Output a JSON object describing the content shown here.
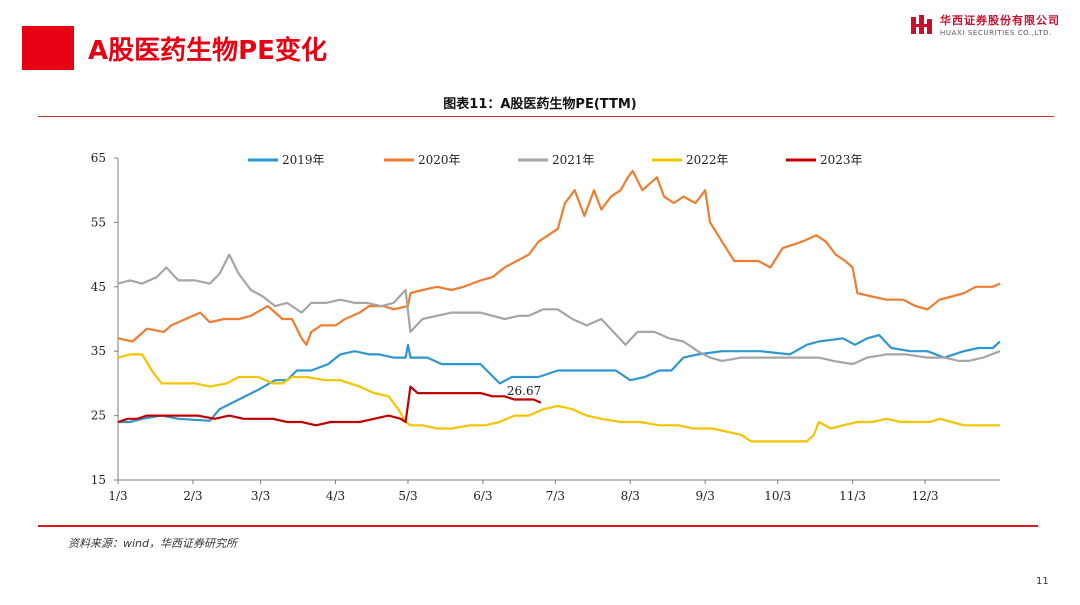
{
  "header": {
    "title": "A股医药生物PE变化",
    "logo_cn": "华西证券股份有限公司",
    "logo_en": "HUAXI SECURITIES CO.,LTD."
  },
  "colors": {
    "brand_red": "#e60012"
  },
  "source": "资料来源：wind，华西证券研究所",
  "page_number": "11",
  "chart_data": {
    "type": "line",
    "title": "图表11：A股医药生物PE(TTM)",
    "xlabel": "",
    "ylabel": "",
    "ylim": [
      15,
      65
    ],
    "yticks": [
      15,
      25,
      35,
      45,
      55,
      65
    ],
    "x_range": [
      0,
      365
    ],
    "xticks": [
      {
        "label": "1/3",
        "x": 0
      },
      {
        "label": "2/3",
        "x": 31
      },
      {
        "label": "3/3",
        "x": 59
      },
      {
        "label": "4/3",
        "x": 90
      },
      {
        "label": "5/3",
        "x": 120
      },
      {
        "label": "6/3",
        "x": 151
      },
      {
        "label": "7/3",
        "x": 181
      },
      {
        "label": "8/3",
        "x": 212
      },
      {
        "label": "9/3",
        "x": 243
      },
      {
        "label": "10/3",
        "x": 273
      },
      {
        "label": "11/3",
        "x": 304
      },
      {
        "label": "12/3",
        "x": 334
      }
    ],
    "grid": false,
    "legend_position": "top",
    "annotation": {
      "text": "26.67",
      "x": 173,
      "y": 26.67
    },
    "series": [
      {
        "name": "2019年",
        "color": "#2e97d1",
        "points": [
          [
            0,
            24
          ],
          [
            5,
            24
          ],
          [
            10,
            24.5
          ],
          [
            18,
            25
          ],
          [
            25,
            24.5
          ],
          [
            38,
            24.2
          ],
          [
            42,
            26
          ],
          [
            50,
            27.5
          ],
          [
            58,
            29
          ],
          [
            65,
            30.5
          ],
          [
            70,
            30.5
          ],
          [
            74,
            32
          ],
          [
            80,
            32
          ],
          [
            87,
            33
          ],
          [
            92,
            34.5
          ],
          [
            98,
            35
          ],
          [
            104,
            34.5
          ],
          [
            108,
            34.5
          ],
          [
            114,
            34
          ],
          [
            119,
            34
          ],
          [
            120,
            36
          ],
          [
            121,
            34
          ],
          [
            128,
            34
          ],
          [
            134,
            33
          ],
          [
            140,
            33
          ],
          [
            150,
            33
          ],
          [
            158,
            30
          ],
          [
            163,
            31
          ],
          [
            168,
            31
          ],
          [
            174,
            31
          ],
          [
            182,
            32
          ],
          [
            190,
            32
          ],
          [
            198,
            32
          ],
          [
            206,
            32
          ],
          [
            212,
            30.5
          ],
          [
            218,
            31
          ],
          [
            224,
            32
          ],
          [
            229,
            32
          ],
          [
            234,
            34
          ],
          [
            240,
            34.5
          ],
          [
            250,
            35
          ],
          [
            258,
            35
          ],
          [
            266,
            35
          ],
          [
            278,
            34.5
          ],
          [
            285,
            36
          ],
          [
            290,
            36.5
          ],
          [
            300,
            37
          ],
          [
            305,
            36
          ],
          [
            310,
            37
          ],
          [
            315,
            37.5
          ],
          [
            320,
            35.5
          ],
          [
            328,
            35
          ],
          [
            335,
            35
          ],
          [
            342,
            34
          ],
          [
            350,
            35
          ],
          [
            356,
            35.5
          ],
          [
            362,
            35.5
          ],
          [
            365,
            36.5
          ]
        ]
      },
      {
        "name": "2020年",
        "color": "#ed7d31",
        "points": [
          [
            0,
            37
          ],
          [
            6,
            36.5
          ],
          [
            12,
            38.5
          ],
          [
            19,
            38
          ],
          [
            22,
            39
          ],
          [
            28,
            40
          ],
          [
            34,
            41
          ],
          [
            38,
            39.5
          ],
          [
            44,
            40
          ],
          [
            50,
            40
          ],
          [
            55,
            40.5
          ],
          [
            62,
            42
          ],
          [
            68,
            40
          ],
          [
            72,
            40
          ],
          [
            76,
            37
          ],
          [
            78,
            36
          ],
          [
            80,
            38
          ],
          [
            84,
            39
          ],
          [
            90,
            39
          ],
          [
            94,
            40
          ],
          [
            100,
            41
          ],
          [
            104,
            42
          ],
          [
            110,
            42
          ],
          [
            114,
            41.5
          ],
          [
            120,
            42
          ],
          [
            121,
            44
          ],
          [
            126,
            44.5
          ],
          [
            132,
            45
          ],
          [
            138,
            44.5
          ],
          [
            143,
            45
          ],
          [
            150,
            46
          ],
          [
            155,
            46.5
          ],
          [
            160,
            48
          ],
          [
            165,
            49
          ],
          [
            170,
            50
          ],
          [
            174,
            52
          ],
          [
            178,
            53
          ],
          [
            182,
            54
          ],
          [
            185,
            58
          ],
          [
            189,
            60
          ],
          [
            193,
            56
          ],
          [
            197,
            60
          ],
          [
            200,
            57
          ],
          [
            204,
            59
          ],
          [
            208,
            60
          ],
          [
            211,
            62
          ],
          [
            213,
            63
          ],
          [
            217,
            60
          ],
          [
            220,
            61
          ],
          [
            223,
            62
          ],
          [
            226,
            59
          ],
          [
            230,
            58
          ],
          [
            234,
            59
          ],
          [
            239,
            58
          ],
          [
            243,
            60
          ],
          [
            245,
            55
          ],
          [
            250,
            52
          ],
          [
            255,
            49
          ],
          [
            260,
            49
          ],
          [
            265,
            49
          ],
          [
            270,
            48
          ],
          [
            275,
            51
          ],
          [
            283,
            52
          ],
          [
            289,
            53
          ],
          [
            293,
            52
          ],
          [
            297,
            50
          ],
          [
            301,
            49
          ],
          [
            304,
            48
          ],
          [
            306,
            44
          ],
          [
            312,
            43.5
          ],
          [
            318,
            43
          ],
          [
            325,
            43
          ],
          [
            330,
            42
          ],
          [
            335,
            41.5
          ],
          [
            340,
            43
          ],
          [
            345,
            43.5
          ],
          [
            350,
            44
          ],
          [
            355,
            45
          ],
          [
            362,
            45
          ],
          [
            365,
            45.5
          ]
        ]
      },
      {
        "name": "2021年",
        "color": "#a5a5a5",
        "points": [
          [
            0,
            45.5
          ],
          [
            5,
            46
          ],
          [
            10,
            45.5
          ],
          [
            16,
            46.5
          ],
          [
            20,
            48
          ],
          [
            25,
            46
          ],
          [
            32,
            46
          ],
          [
            38,
            45.5
          ],
          [
            42,
            47
          ],
          [
            46,
            50
          ],
          [
            50,
            47
          ],
          [
            55,
            44.5
          ],
          [
            60,
            43.5
          ],
          [
            65,
            42
          ],
          [
            70,
            42.5
          ],
          [
            76,
            41
          ],
          [
            80,
            42.5
          ],
          [
            86,
            42.5
          ],
          [
            92,
            43
          ],
          [
            98,
            42.5
          ],
          [
            103,
            42.5
          ],
          [
            109,
            42
          ],
          [
            114,
            42.5
          ],
          [
            119,
            44.5
          ],
          [
            121,
            38
          ],
          [
            126,
            40
          ],
          [
            132,
            40.5
          ],
          [
            138,
            41
          ],
          [
            144,
            41
          ],
          [
            150,
            41
          ],
          [
            155,
            40.5
          ],
          [
            160,
            40
          ],
          [
            166,
            40.5
          ],
          [
            170,
            40.5
          ],
          [
            176,
            41.5
          ],
          [
            182,
            41.5
          ],
          [
            188,
            40
          ],
          [
            194,
            39
          ],
          [
            200,
            40
          ],
          [
            205,
            38
          ],
          [
            210,
            36
          ],
          [
            215,
            38
          ],
          [
            222,
            38
          ],
          [
            228,
            37
          ],
          [
            234,
            36.5
          ],
          [
            240,
            35
          ],
          [
            245,
            34
          ],
          [
            250,
            33.5
          ],
          [
            258,
            34
          ],
          [
            266,
            34
          ],
          [
            275,
            34
          ],
          [
            283,
            34
          ],
          [
            290,
            34
          ],
          [
            296,
            33.5
          ],
          [
            304,
            33
          ],
          [
            310,
            34
          ],
          [
            318,
            34.5
          ],
          [
            326,
            34.5
          ],
          [
            335,
            34
          ],
          [
            342,
            34
          ],
          [
            348,
            33.5
          ],
          [
            352,
            33.5
          ],
          [
            358,
            34
          ],
          [
            365,
            35
          ]
        ]
      },
      {
        "name": "2022年",
        "color": "#f5c400",
        "points": [
          [
            0,
            34
          ],
          [
            5,
            34.5
          ],
          [
            10,
            34.5
          ],
          [
            14,
            32
          ],
          [
            18,
            30
          ],
          [
            26,
            30
          ],
          [
            32,
            30
          ],
          [
            38,
            29.5
          ],
          [
            45,
            30
          ],
          [
            50,
            31
          ],
          [
            58,
            31
          ],
          [
            64,
            30
          ],
          [
            68,
            30
          ],
          [
            72,
            31
          ],
          [
            78,
            31
          ],
          [
            86,
            30.5
          ],
          [
            92,
            30.5
          ],
          [
            96,
            30
          ],
          [
            100,
            29.5
          ],
          [
            106,
            28.5
          ],
          [
            112,
            28
          ],
          [
            116,
            26
          ],
          [
            119,
            24
          ],
          [
            121,
            23.5
          ],
          [
            126,
            23.5
          ],
          [
            132,
            23
          ],
          [
            138,
            23
          ],
          [
            146,
            23.5
          ],
          [
            152,
            23.5
          ],
          [
            158,
            24
          ],
          [
            164,
            25
          ],
          [
            170,
            25
          ],
          [
            176,
            26
          ],
          [
            182,
            26.5
          ],
          [
            188,
            26
          ],
          [
            194,
            25
          ],
          [
            200,
            24.5
          ],
          [
            208,
            24
          ],
          [
            216,
            24
          ],
          [
            224,
            23.5
          ],
          [
            232,
            23.5
          ],
          [
            238,
            23
          ],
          [
            246,
            23
          ],
          [
            252,
            22.5
          ],
          [
            258,
            22
          ],
          [
            262,
            21
          ],
          [
            268,
            21
          ],
          [
            273,
            21
          ],
          [
            280,
            21
          ],
          [
            285,
            21
          ],
          [
            288,
            22
          ],
          [
            290,
            24
          ],
          [
            295,
            23
          ],
          [
            300,
            23.5
          ],
          [
            306,
            24
          ],
          [
            312,
            24
          ],
          [
            318,
            24.5
          ],
          [
            324,
            24
          ],
          [
            330,
            24
          ],
          [
            336,
            24
          ],
          [
            340,
            24.5
          ],
          [
            345,
            24
          ],
          [
            350,
            23.5
          ],
          [
            356,
            23.5
          ],
          [
            365,
            23.5
          ]
        ]
      },
      {
        "name": "2023年",
        "color": "#c00000",
        "points": [
          [
            0,
            24
          ],
          [
            4,
            24.5
          ],
          [
            8,
            24.5
          ],
          [
            12,
            25
          ],
          [
            18,
            25
          ],
          [
            26,
            25
          ],
          [
            33,
            25
          ],
          [
            40,
            24.5
          ],
          [
            46,
            25
          ],
          [
            52,
            24.5
          ],
          [
            58,
            24.5
          ],
          [
            64,
            24.5
          ],
          [
            70,
            24
          ],
          [
            76,
            24
          ],
          [
            82,
            23.5
          ],
          [
            88,
            24
          ],
          [
            94,
            24
          ],
          [
            100,
            24
          ],
          [
            106,
            24.5
          ],
          [
            112,
            25
          ],
          [
            117,
            24.5
          ],
          [
            119,
            24
          ],
          [
            121,
            29.5
          ],
          [
            124,
            28.5
          ],
          [
            128,
            28.5
          ],
          [
            134,
            28.5
          ],
          [
            140,
            28.5
          ],
          [
            146,
            28.5
          ],
          [
            150,
            28.5
          ],
          [
            155,
            28
          ],
          [
            160,
            28
          ],
          [
            164,
            27.5
          ],
          [
            168,
            27.5
          ],
          [
            172,
            27.5
          ],
          [
            175,
            27
          ]
        ]
      }
    ]
  }
}
